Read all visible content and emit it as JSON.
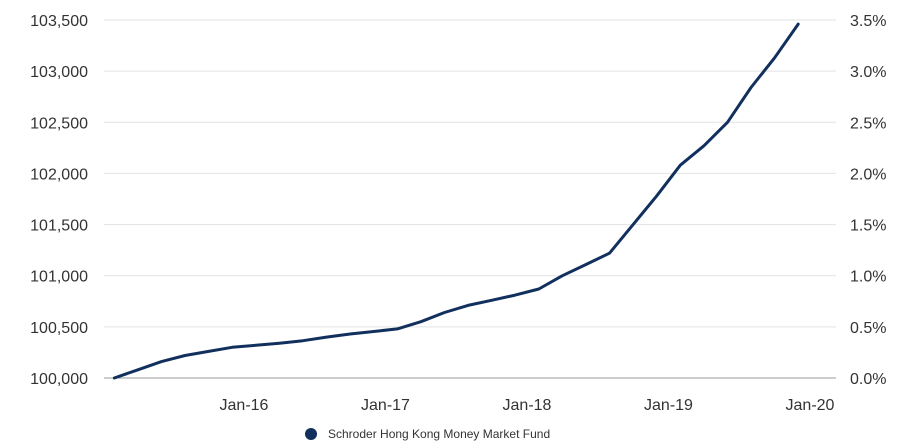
{
  "chart_data": {
    "type": "line",
    "title": "",
    "xlabel": "",
    "ylabel": "",
    "ylim": [
      100000,
      103500
    ],
    "y2lim": [
      0,
      3.5
    ],
    "grid": true,
    "legend_position": "bottom",
    "y_ticks": [
      "100,000",
      "100,500",
      "101,000",
      "101,500",
      "102,000",
      "102,500",
      "103,000",
      "103,500"
    ],
    "y2_ticks": [
      "0.0%",
      "0.5%",
      "1.0%",
      "1.5%",
      "2.0%",
      "2.5%",
      "3.0%",
      "3.5%"
    ],
    "x_ticks": [
      {
        "label": "Jan-16",
        "date": "2016-01"
      },
      {
        "label": "Jan-17",
        "date": "2017-01"
      },
      {
        "label": "Jan-18",
        "date": "2018-01"
      },
      {
        "label": "Jan-19",
        "date": "2019-01"
      },
      {
        "label": "Jan-20",
        "date": "2020-01"
      }
    ],
    "series": [
      {
        "name": "Schroder Hong Kong Money Market Fund",
        "color": "#12305e",
        "x": [
          "2015-02",
          "2015-04",
          "2015-06",
          "2015-08",
          "2015-10",
          "2015-12",
          "2016-02",
          "2016-04",
          "2016-06",
          "2016-08",
          "2016-10",
          "2016-12",
          "2017-02",
          "2017-04",
          "2017-06",
          "2017-08",
          "2017-10",
          "2017-12",
          "2018-02",
          "2018-04",
          "2018-06",
          "2018-08",
          "2018-10",
          "2018-12",
          "2019-02",
          "2019-04",
          "2019-06",
          "2019-08",
          "2019-10",
          "2019-12"
        ],
        "y": [
          100000,
          100080,
          100160,
          100220,
          100260,
          100300,
          100320,
          100340,
          100365,
          100400,
          100430,
          100455,
          100480,
          100550,
          100640,
          100710,
          100760,
          100810,
          100870,
          101000,
          101110,
          101220,
          101500,
          101780,
          102080,
          102270,
          102500,
          102840,
          103130,
          103460
        ]
      }
    ]
  }
}
